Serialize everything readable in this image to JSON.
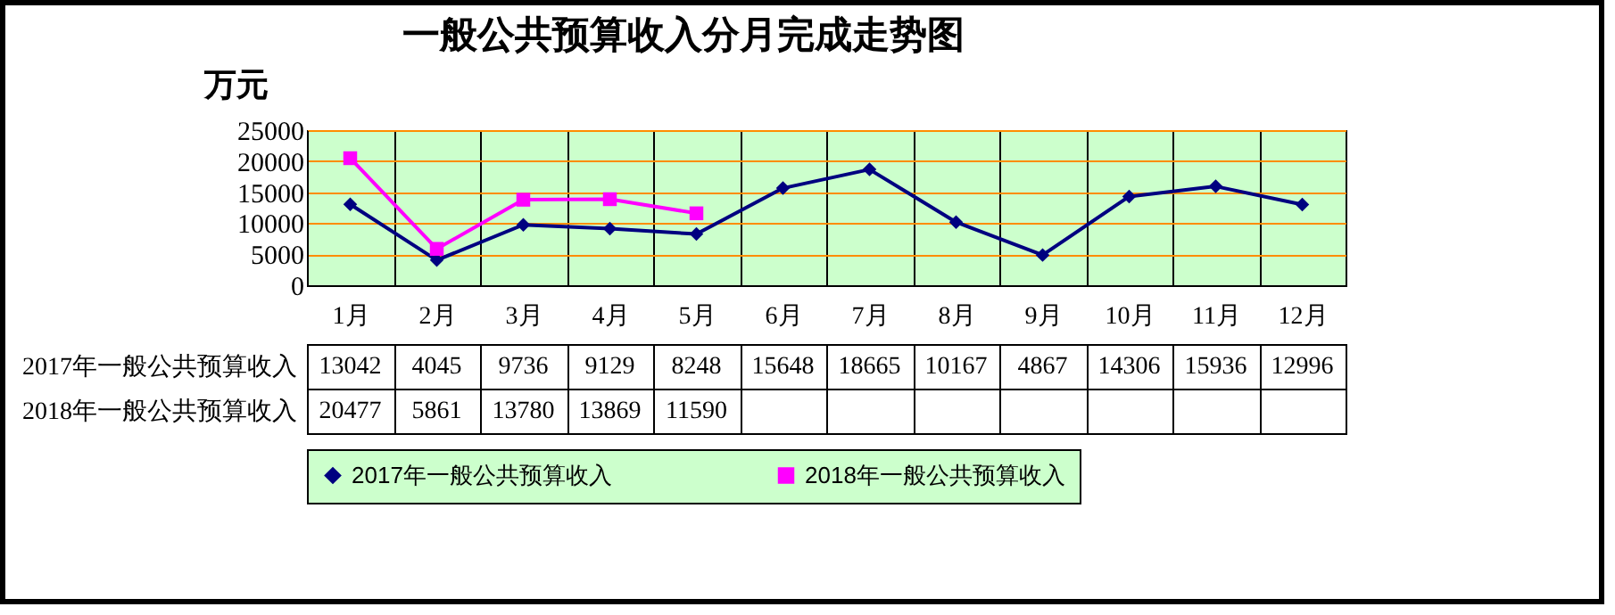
{
  "chart_data": {
    "type": "line",
    "title": "一般公共预算收入分月完成走势图",
    "ylabel": "万元",
    "categories": [
      "1月",
      "2月",
      "3月",
      "4月",
      "5月",
      "6月",
      "7月",
      "8月",
      "9月",
      "10月",
      "11月",
      "12月"
    ],
    "series": [
      {
        "name": "2017年一般公共预算收入",
        "color": "#000080",
        "marker": "diamond",
        "values": [
          13042,
          4045,
          9736,
          9129,
          8248,
          15648,
          18665,
          10167,
          4867,
          14306,
          15936,
          12996
        ]
      },
      {
        "name": "2018年一般公共预算收入",
        "color": "#ff00ff",
        "marker": "square",
        "values": [
          20477,
          5861,
          13780,
          13869,
          11590,
          null,
          null,
          null,
          null,
          null,
          null,
          null
        ]
      }
    ],
    "ylim": [
      0,
      25000
    ],
    "yticks": [
      0,
      5000,
      10000,
      15000,
      20000,
      25000
    ],
    "grid": true,
    "legend": "bottom",
    "data_labels": true,
    "line_style": "solid"
  }
}
